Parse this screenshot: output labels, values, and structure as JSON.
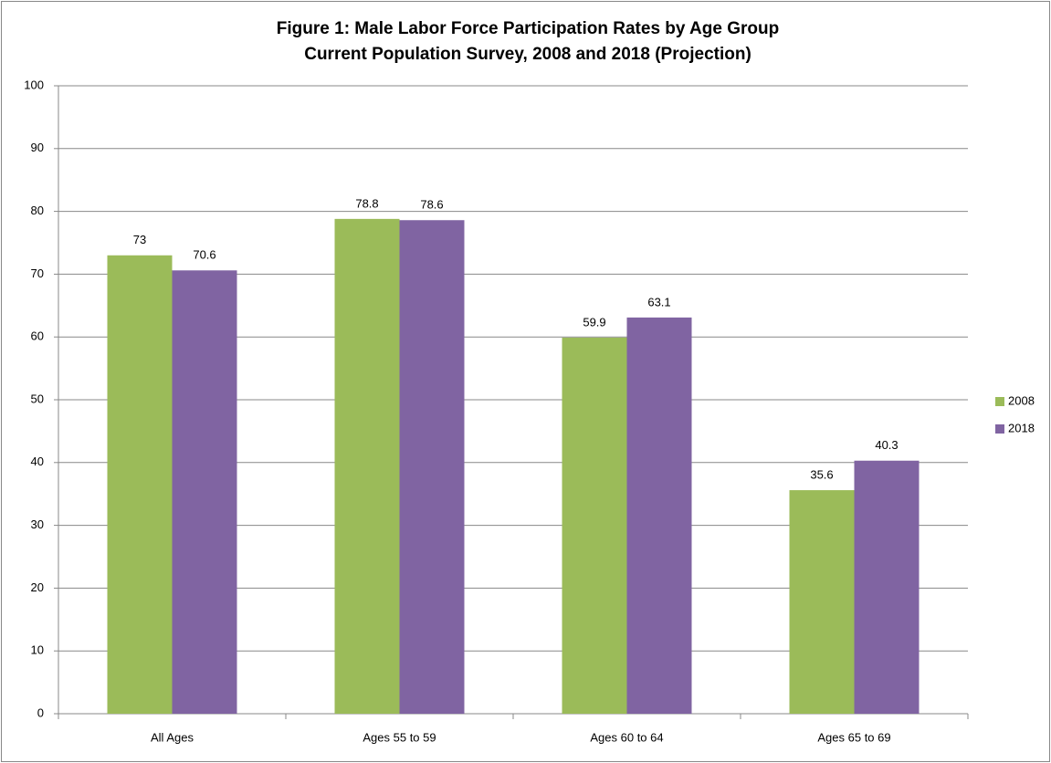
{
  "chart_data": {
    "type": "bar",
    "title": "Figure 1: Male Labor Force Participation Rates by Age Group",
    "subtitle": "Current Population Survey, 2008 and 2018 (Projection)",
    "categories": [
      "All Ages",
      "Ages 55 to 59",
      "Ages 60 to 64",
      "Ages 65 to 69"
    ],
    "series": [
      {
        "name": "2008",
        "color": "#9bbb59",
        "values": [
          73,
          78.8,
          59.9,
          35.6
        ]
      },
      {
        "name": "2018",
        "color": "#8064a2",
        "values": [
          70.6,
          78.6,
          63.1,
          40.3
        ]
      }
    ],
    "ylim": [
      0,
      100
    ],
    "yticks": [
      0,
      10,
      20,
      30,
      40,
      50,
      60,
      70,
      80,
      90,
      100
    ],
    "grid": true,
    "legend": "right"
  }
}
